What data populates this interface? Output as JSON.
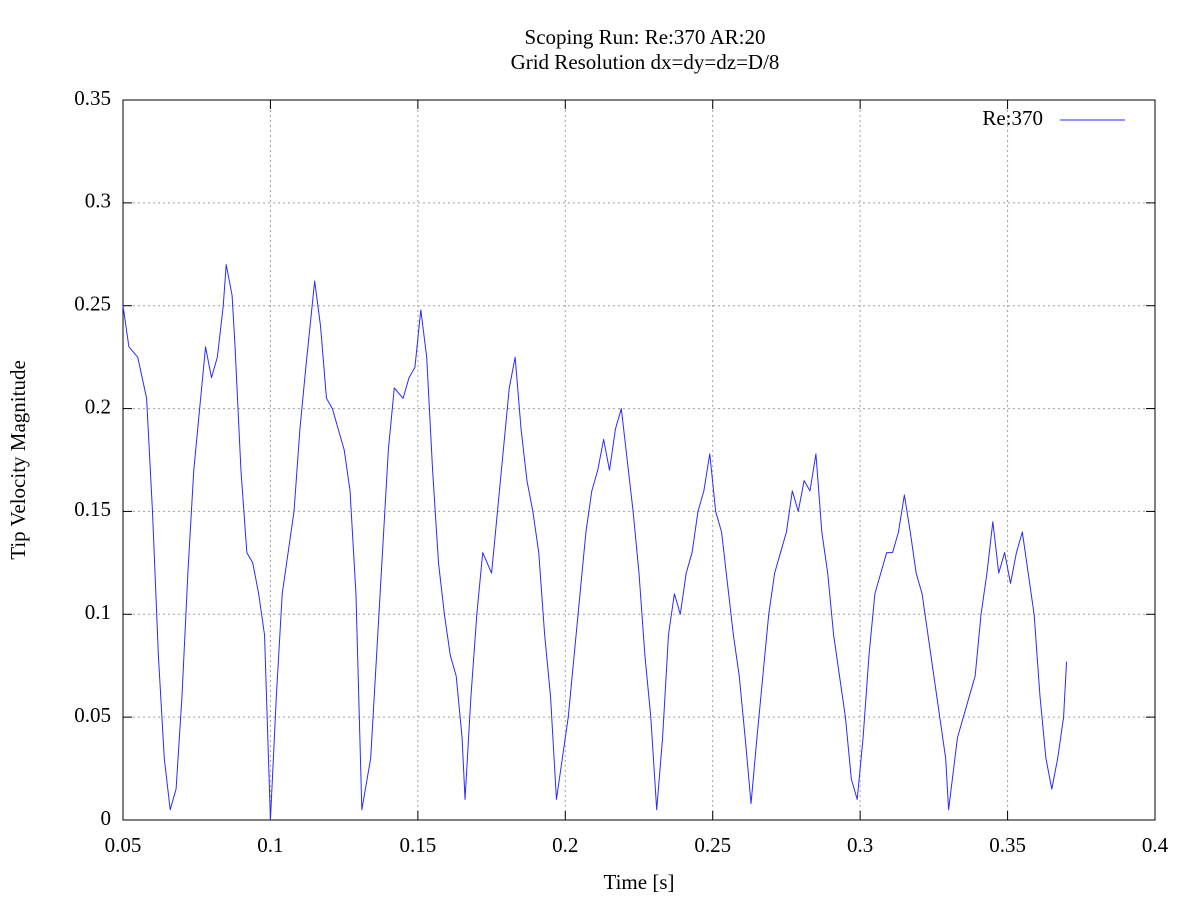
{
  "chart_data": {
    "type": "line",
    "title": "Scoping Run: Re:370  AR:20",
    "subtitle": "Grid Resolution dx=dy=dz=D/8",
    "x_label": "Time [s]",
    "y_label": "Tip Velocity Magnitude",
    "xlim": [
      0.05,
      0.4
    ],
    "xticks": [
      0.05,
      0.1,
      0.15,
      0.2,
      0.25,
      0.3,
      0.35,
      0.4
    ],
    "ylim": [
      0,
      0.35
    ],
    "yticks": [
      0,
      0.05,
      0.1,
      0.15,
      0.2,
      0.25,
      0.3,
      0.35
    ],
    "grid": true,
    "legend_position": "top-right",
    "x": [
      0.05,
      0.052,
      0.055,
      0.058,
      0.06,
      0.062,
      0.064,
      0.066,
      0.068,
      0.07,
      0.072,
      0.074,
      0.076,
      0.078,
      0.08,
      0.082,
      0.084,
      0.085,
      0.087,
      0.088,
      0.09,
      0.092,
      0.094,
      0.096,
      0.098,
      0.1,
      0.102,
      0.104,
      0.106,
      0.108,
      0.11,
      0.112,
      0.115,
      0.117,
      0.119,
      0.121,
      0.123,
      0.125,
      0.127,
      0.129,
      0.131,
      0.134,
      0.136,
      0.138,
      0.14,
      0.142,
      0.145,
      0.147,
      0.149,
      0.151,
      0.153,
      0.155,
      0.157,
      0.159,
      0.161,
      0.163,
      0.165,
      0.166,
      0.168,
      0.17,
      0.172,
      0.175,
      0.177,
      0.179,
      0.181,
      0.183,
      0.185,
      0.187,
      0.189,
      0.191,
      0.193,
      0.195,
      0.197,
      0.199,
      0.201,
      0.203,
      0.205,
      0.207,
      0.209,
      0.211,
      0.213,
      0.215,
      0.217,
      0.219,
      0.221,
      0.223,
      0.225,
      0.227,
      0.229,
      0.231,
      0.233,
      0.235,
      0.237,
      0.239,
      0.241,
      0.243,
      0.245,
      0.247,
      0.249,
      0.251,
      0.253,
      0.255,
      0.257,
      0.259,
      0.261,
      0.263,
      0.265,
      0.267,
      0.269,
      0.271,
      0.273,
      0.275,
      0.277,
      0.279,
      0.281,
      0.283,
      0.285,
      0.287,
      0.289,
      0.291,
      0.293,
      0.295,
      0.297,
      0.299,
      0.301,
      0.303,
      0.305,
      0.307,
      0.309,
      0.311,
      0.313,
      0.315,
      0.317,
      0.319,
      0.321,
      0.323,
      0.325,
      0.327,
      0.329,
      0.33,
      0.333,
      0.335,
      0.337,
      0.339,
      0.341,
      0.343,
      0.345,
      0.347,
      0.349,
      0.351,
      0.353,
      0.355,
      0.357,
      0.359,
      0.361,
      0.363,
      0.365,
      0.367,
      0.369,
      0.37
    ],
    "series": [
      {
        "name": "Re:370",
        "color": "#2b2bff",
        "values": [
          0.25,
          0.23,
          0.225,
          0.205,
          0.15,
          0.08,
          0.03,
          0.005,
          0.015,
          0.06,
          0.12,
          0.17,
          0.2,
          0.23,
          0.215,
          0.225,
          0.25,
          0.27,
          0.255,
          0.23,
          0.17,
          0.13,
          0.125,
          0.11,
          0.09,
          0.0,
          0.06,
          0.11,
          0.13,
          0.15,
          0.19,
          0.22,
          0.262,
          0.24,
          0.205,
          0.2,
          0.19,
          0.18,
          0.16,
          0.11,
          0.005,
          0.03,
          0.08,
          0.13,
          0.18,
          0.21,
          0.205,
          0.215,
          0.22,
          0.248,
          0.225,
          0.17,
          0.125,
          0.1,
          0.08,
          0.07,
          0.04,
          0.01,
          0.06,
          0.1,
          0.13,
          0.12,
          0.15,
          0.18,
          0.21,
          0.225,
          0.19,
          0.165,
          0.15,
          0.13,
          0.09,
          0.06,
          0.01,
          0.03,
          0.05,
          0.08,
          0.11,
          0.14,
          0.16,
          0.17,
          0.185,
          0.17,
          0.19,
          0.2,
          0.175,
          0.15,
          0.12,
          0.08,
          0.05,
          0.005,
          0.04,
          0.09,
          0.11,
          0.1,
          0.12,
          0.13,
          0.15,
          0.16,
          0.178,
          0.15,
          0.14,
          0.115,
          0.09,
          0.07,
          0.04,
          0.008,
          0.04,
          0.07,
          0.1,
          0.12,
          0.13,
          0.14,
          0.16,
          0.15,
          0.165,
          0.16,
          0.178,
          0.14,
          0.12,
          0.09,
          0.07,
          0.05,
          0.02,
          0.01,
          0.04,
          0.08,
          0.11,
          0.12,
          0.13,
          0.13,
          0.14,
          0.158,
          0.14,
          0.12,
          0.11,
          0.09,
          0.07,
          0.05,
          0.03,
          0.005,
          0.04,
          0.05,
          0.06,
          0.07,
          0.1,
          0.12,
          0.145,
          0.12,
          0.13,
          0.115,
          0.13,
          0.14,
          0.12,
          0.1,
          0.06,
          0.03,
          0.015,
          0.03,
          0.05,
          0.077
        ]
      }
    ]
  }
}
